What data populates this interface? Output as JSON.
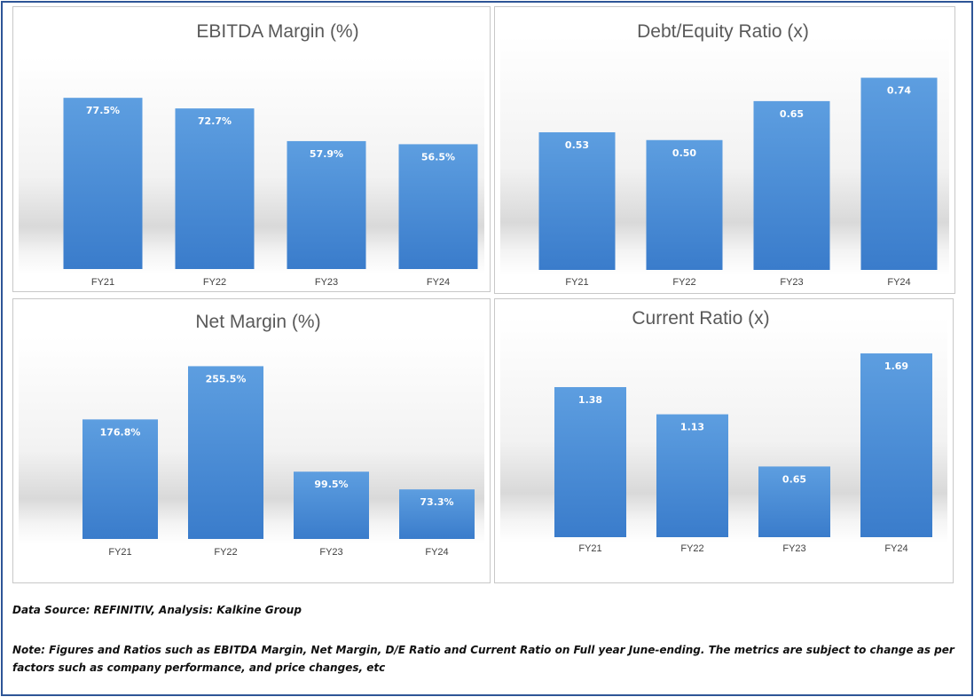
{
  "colors": {
    "bar": "#4a8fd6",
    "bar_light": "#5d9ee0",
    "bar_dark": "#3a7ccb",
    "title": "#595959",
    "tick": "#404040",
    "data_label": "#ffffff",
    "frame": "#2e5597"
  },
  "chart_data": [
    {
      "type": "bar",
      "title": "EBITDA Margin (%)",
      "categories": [
        "FY21",
        "FY22",
        "FY23",
        "FY24"
      ],
      "values": [
        77.5,
        72.7,
        57.9,
        56.5
      ],
      "labels": [
        "77.5%",
        "72.7%",
        "57.9%",
        "56.5%"
      ],
      "ylim": [
        0,
        84
      ],
      "grid": false,
      "legend": "none"
    },
    {
      "type": "bar",
      "title": "Debt/Equity Ratio (x)",
      "categories": [
        "FY21",
        "FY22",
        "FY23",
        "FY24"
      ],
      "values": [
        0.53,
        0.5,
        0.65,
        0.74
      ],
      "labels": [
        "0.53",
        "0.50",
        "0.65",
        "0.74"
      ],
      "ylim": [
        0,
        0.8
      ],
      "grid": false,
      "legend": "none"
    },
    {
      "type": "bar",
      "title": "Net Margin (%)",
      "categories": [
        "FY21",
        "FY22",
        "FY23",
        "FY24"
      ],
      "values": [
        176.8,
        255.5,
        99.5,
        73.3
      ],
      "labels": [
        "176.8%",
        "255.5%",
        "99.5%",
        "73.3%"
      ],
      "ylim": [
        0,
        260
      ],
      "grid": false,
      "legend": "none"
    },
    {
      "type": "bar",
      "title": "Current Ratio (x)",
      "categories": [
        "FY21",
        "FY22",
        "FY23",
        "FY24"
      ],
      "values": [
        1.38,
        1.13,
        0.65,
        1.69
      ],
      "labels": [
        "1.38",
        "1.13",
        "0.65",
        "1.69"
      ],
      "ylim": [
        0,
        1.78
      ],
      "grid": false,
      "legend": "none"
    }
  ],
  "footer": {
    "source": "Data Source: REFINITIV, Analysis: Kalkine Group",
    "note": "Note: Figures and Ratios such as EBITDA Margin, Net Margin, D/E Ratio and Current Ratio on Full  year June-ending. The metrics are subject to change as per factors such as company performance, and price changes, etc"
  }
}
